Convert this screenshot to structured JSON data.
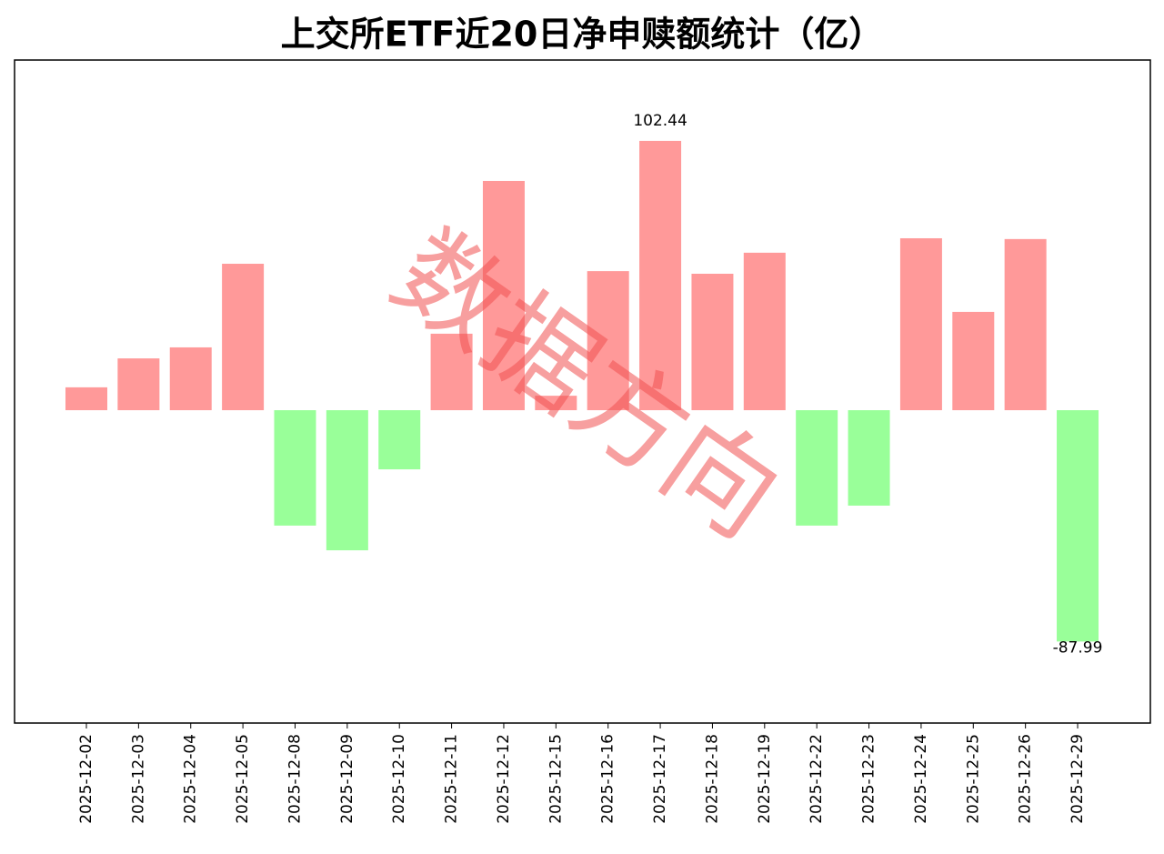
{
  "chart_data": {
    "type": "bar",
    "title": "上交所ETF近20日净申赎额统计（亿）",
    "categories": [
      "2025-12-02",
      "2025-12-03",
      "2025-12-04",
      "2025-12-05",
      "2025-12-08",
      "2025-12-09",
      "2025-12-10",
      "2025-12-11",
      "2025-12-12",
      "2025-12-15",
      "2025-12-16",
      "2025-12-17",
      "2025-12-18",
      "2025-12-19",
      "2025-12-22",
      "2025-12-23",
      "2025-12-24",
      "2025-12-25",
      "2025-12-26",
      "2025-12-29"
    ],
    "values": [
      8.7,
      19.7,
      23.9,
      55.7,
      -43.9,
      -53.3,
      -22.5,
      29.1,
      87.2,
      5.5,
      52.9,
      102.44,
      51.9,
      59.9,
      -43.9,
      -36.3,
      65.4,
      37.4,
      65.1,
      -87.99
    ],
    "colors": {
      "positive": "#ff9999",
      "negative": "#99ff99"
    },
    "ylim": [
      -119.0,
      133.2
    ],
    "watermark": "数据方向"
  }
}
